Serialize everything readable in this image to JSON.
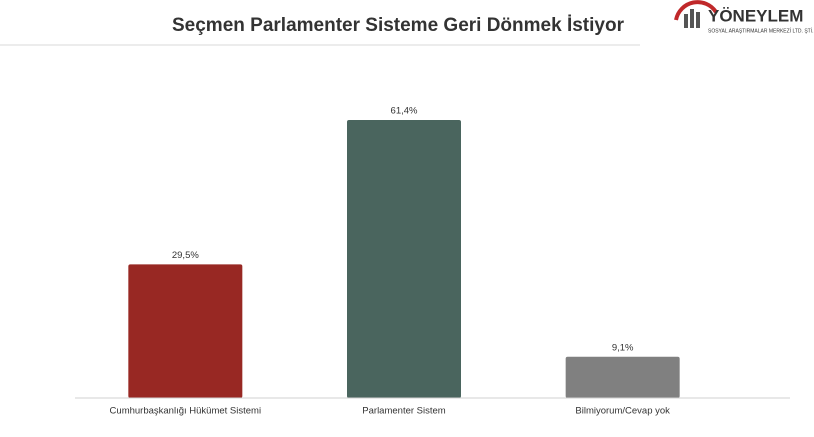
{
  "chart_data": {
    "type": "bar",
    "title": "Seçmen Parlamenter Sisteme Geri Dönmek İstiyor",
    "categories": [
      "Cumhurbaşkanlığı Hükümet Sistemi",
      "Parlamenter Sistem",
      "Bilmiyorum/Cevap yok"
    ],
    "values": [
      29.5,
      61.4,
      9.1
    ],
    "value_labels": [
      "29,5%",
      "61,4%",
      "9,1%"
    ],
    "colors": [
      "#982823",
      "#4a655e",
      "#808080"
    ],
    "ylim": [
      0,
      70
    ],
    "grid": false
  },
  "logo": {
    "name": "YÖNEYLEM",
    "tagline": "SOSYAL ARAŞTIRMALAR MERKEZİ LTD. ŞTİ."
  }
}
